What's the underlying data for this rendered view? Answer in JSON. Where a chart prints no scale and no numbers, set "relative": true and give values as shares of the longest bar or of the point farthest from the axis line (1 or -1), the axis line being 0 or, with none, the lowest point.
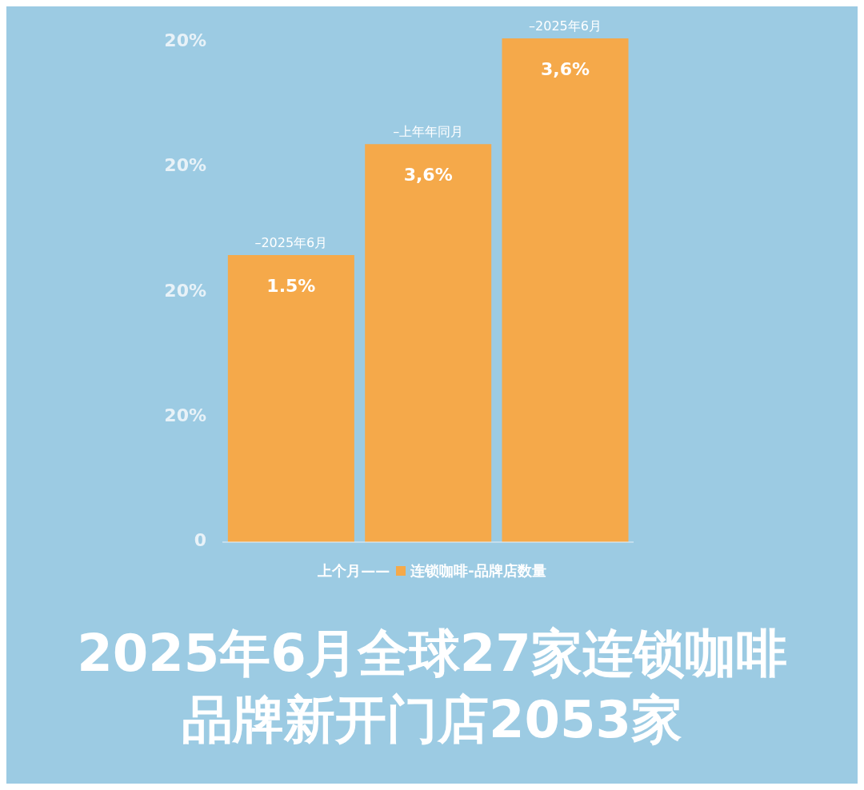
{
  "chart_data": {
    "type": "bar",
    "title": "2025年6月全球27家连锁咖啡品牌新开门店2053家",
    "categories": [
      "–2025年6月",
      "–上年年同月",
      "–2025年6月"
    ],
    "series": [
      {
        "name": "连锁咖啡-品牌店数量",
        "color": "#f5a94a",
        "values": [
          0.57,
          0.79,
          1
        ]
      }
    ],
    "relative": true,
    "value_labels": [
      "1.5%",
      "3,6%",
      "3,6%"
    ],
    "legend": "bottom",
    "annotations": [
      "20%",
      "20%",
      "20%",
      "20%",
      "0",
      "上个月——"
    ]
  }
}
